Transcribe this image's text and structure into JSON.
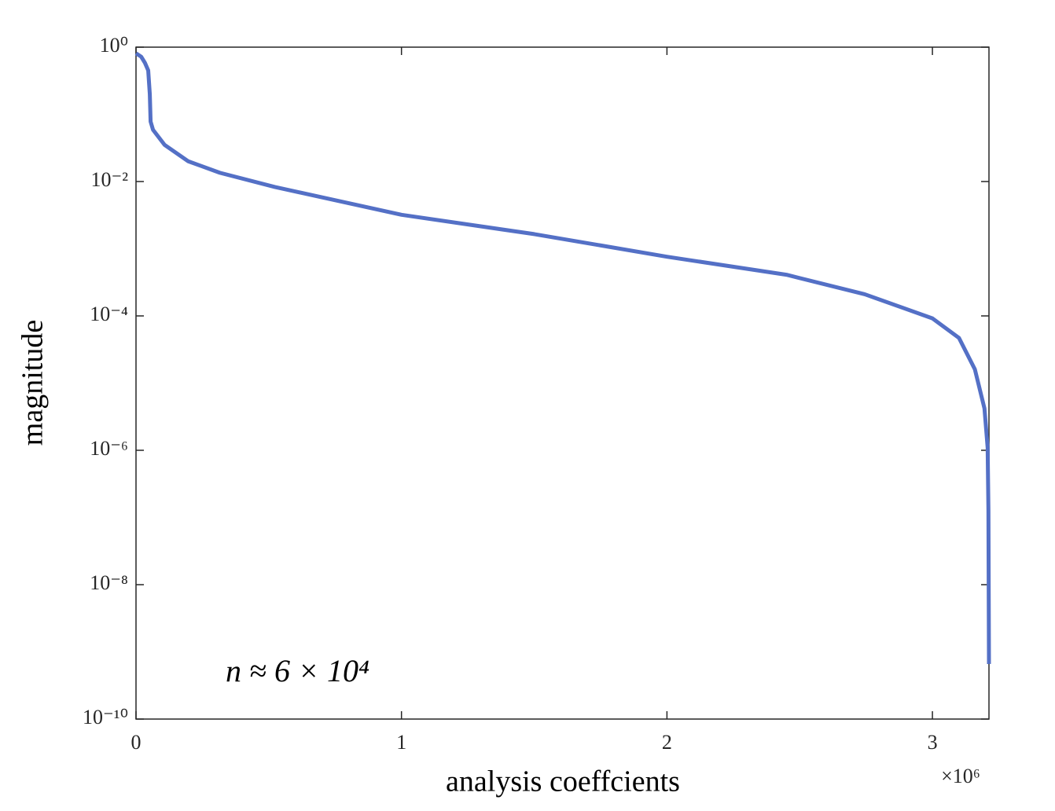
{
  "chart_data": {
    "type": "line",
    "x_label": "analysis coeffcients",
    "y_label": "magnitude",
    "x_exponent_label": "×10⁶",
    "annotation": "n ≈ 6 × 10⁴",
    "y_log_scale": true,
    "color": "#5470c6",
    "x": [
      0,
      19600,
      34000,
      46000,
      52000,
      55000,
      64000,
      108000,
      197000,
      316000,
      523000,
      1000000,
      1500000,
      2000000,
      2450000,
      2745000,
      3000000,
      3100000,
      3160000,
      3196000,
      3208000,
      3211000,
      3213000
    ],
    "values": [
      0.81,
      0.72,
      0.58,
      0.45,
      0.2,
      0.078,
      0.059,
      0.035,
      0.02,
      0.0135,
      0.0083,
      0.0032,
      0.00165,
      0.00076,
      0.00041,
      0.00021,
      9.2e-05,
      4.7e-05,
      1.6e-05,
      4.2e-06,
      1.1e-06,
      1.26e-07,
      6.6e-10
    ],
    "xlim": [
      0,
      3213000
    ],
    "ylim": [
      1e-10,
      1
    ],
    "xticks": [
      0,
      {
        "value": 1000000,
        "label": "1"
      },
      {
        "value": 2000000,
        "label": "2"
      },
      {
        "value": 3000000,
        "label": "3"
      }
    ],
    "yticks": [
      {
        "value": 1e-10,
        "label": "10⁻¹⁰"
      },
      {
        "value": 1e-08,
        "label": "10⁻⁸"
      },
      {
        "value": 1e-06,
        "label": "10⁻⁶"
      },
      {
        "value": 0.0001,
        "label": "10⁻⁴"
      },
      {
        "value": 0.01,
        "label": "10⁻²"
      },
      {
        "value": 1,
        "label": "10⁰"
      }
    ]
  }
}
